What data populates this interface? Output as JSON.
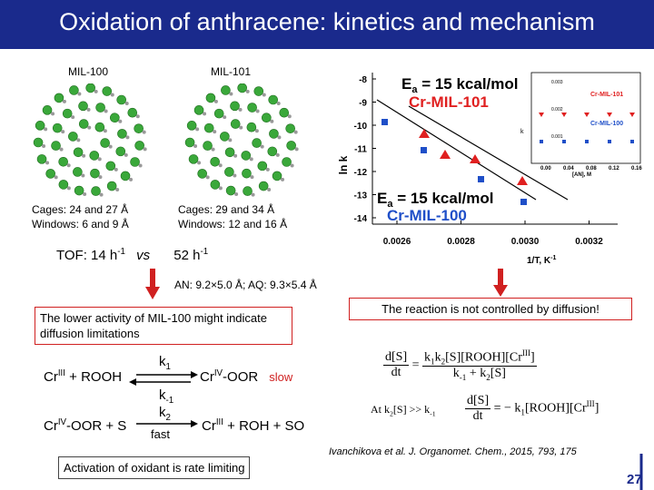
{
  "header": {
    "title": "Oxidation of anthracene: kinetics and mechanism"
  },
  "structures": [
    {
      "label": "MIL-100",
      "cages": "Cages: 24 and 27 Å",
      "windows": "Windows: 6 and 9 Å"
    },
    {
      "label": "MIL-101",
      "cages": "Cages: 29 and 34 Å",
      "windows": "Windows: 12 and 16 Å"
    }
  ],
  "tof": {
    "first": "TOF: 14 h",
    "first_exp": "-1",
    "vs": "vs",
    "second": "52 h",
    "second_exp": "-1"
  },
  "pore_note": "AN: 9.2×5.0 Å; AQ: 9.3×5.4 Å",
  "left_box": "The lower activity of MIL-100 might indicate diffusion limitations",
  "right_box": "The reaction is not controlled by diffusion!",
  "plot": {
    "ea_top": {
      "e": "E",
      "sub": "a",
      "rest": " = 15 kcal/mol"
    },
    "label_top": "Cr-MIL-101",
    "ea_bottom": {
      "e": "E",
      "sub": "a",
      "rest": " = 15 kcal/mol"
    },
    "label_bottom": "Cr-MIL-100",
    "yticks": [
      "-8",
      "-9",
      "-10",
      "-11",
      "-12",
      "-13",
      "-14"
    ],
    "xticks": [
      "0.0026",
      "0.0028",
      "0.0030",
      "0.0032"
    ],
    "ylabel": "ln k",
    "xlabel": {
      "text": "1/T, K",
      "exp": "-1"
    },
    "inset": {
      "label_top": "Cr-MIL-101",
      "label_bottom": "Cr-MIL-100",
      "yticks": [
        "0.003",
        "0.002",
        "0.001"
      ],
      "xticks": [
        "0.00",
        "0.04",
        "0.08",
        "0.12",
        "0.16"
      ],
      "xlabel": "[AN], M",
      "ylabel": "k"
    }
  },
  "mechanism": {
    "r1": {
      "cr": "Cr",
      "cr_ox": "III",
      "rest": " + ROOH",
      "k": "k",
      "k_sub": "1",
      "km": "k",
      "km_sub": "-1",
      "p_cr": "Cr",
      "p_ox": "IV",
      "p_rest": "-OOR",
      "note": "slow"
    },
    "r2": {
      "cr": "Cr",
      "cr_ox": "IV",
      "rest": "-OOR + S",
      "k": "k",
      "k_sub": "2",
      "note": "fast",
      "p_cr": "Cr",
      "p_ox": "III",
      "p_rest": " + ROH + SO"
    }
  },
  "equations": {
    "eq1": {
      "num": "d[S]",
      "den": "dt",
      "eq": "=",
      "n1": "k",
      "n1s": "1",
      "n2": "k",
      "n2s": "2",
      "n3": "[S][ROOH][Cr",
      "n3s": "III",
      "n4": "]",
      "d1": "k",
      "d1s": "-1",
      "d2": " + k",
      "d2s": "2",
      "d3": "[S]"
    },
    "condition": {
      "a": "At k",
      "as": "2",
      "b": "[S] >> k",
      "bs": "-1"
    },
    "eq2": {
      "num": "d[S]",
      "den": "dt",
      "r1": "= − k",
      "r1s": "1",
      "r2": "[ROOH][Cr",
      "r2s": "III",
      "r3": "]"
    }
  },
  "conclusion": "Activation of oxidant is rate limiting",
  "citation": "Ivanchikova et al. J. Organomet. Chem., 2015, 793, 175",
  "page_number": "27"
}
